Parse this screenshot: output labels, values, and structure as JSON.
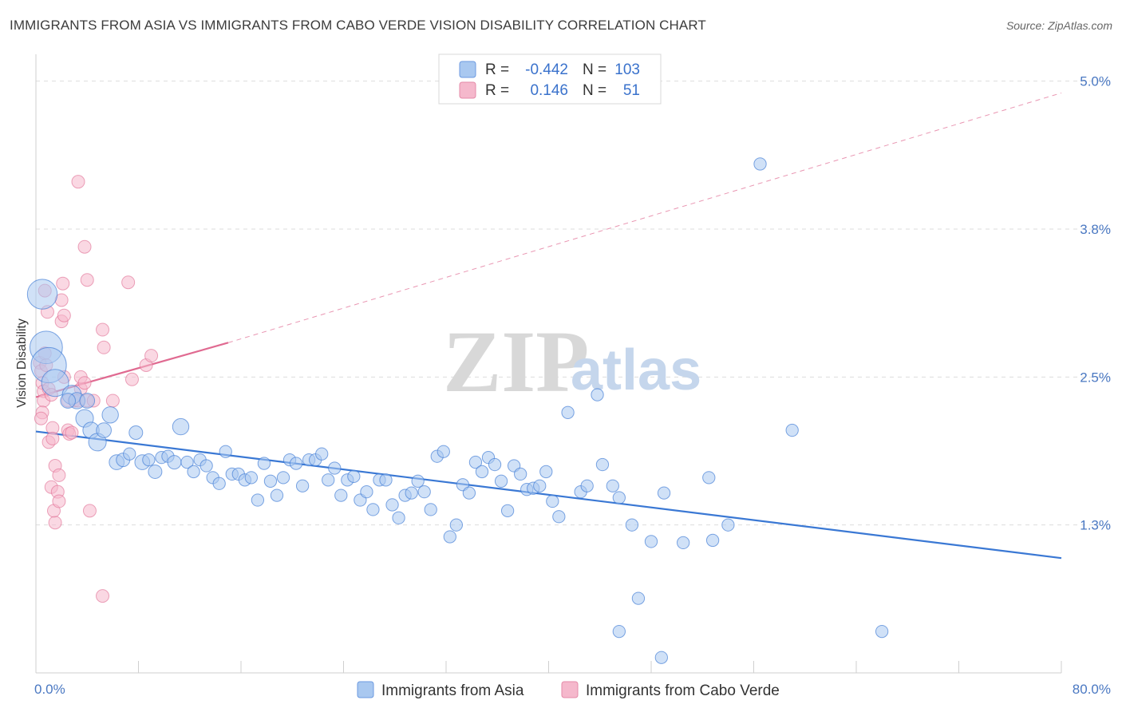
{
  "title": "IMMIGRANTS FROM ASIA VS IMMIGRANTS FROM CABO VERDE VISION DISABILITY CORRELATION CHART",
  "source_label": "Source:",
  "source_value": "ZipAtlas.com",
  "watermark": {
    "zip": "ZIP",
    "atlas": "atlas"
  },
  "colors": {
    "asia": "#3a78d4",
    "asia_fill": "#a9c8f0",
    "cabo": "#e06a91",
    "cabo_fill": "#f5b8cc",
    "grid": "#dddddd",
    "tick_text": "#4a78c2"
  },
  "legend": {
    "rows": [
      {
        "r_label": "R =",
        "r_value": "-0.442",
        "n_label": "N =",
        "n_value": "103"
      },
      {
        "r_label": "R =",
        "r_value": "0.146",
        "n_label": "N =",
        "n_value": "51"
      }
    ]
  },
  "chart_data": {
    "type": "scatter",
    "xlabel": "",
    "ylabel": "Vision Disability",
    "xlim": [
      0,
      80
    ],
    "ylim": [
      0,
      5.2
    ],
    "x_tick_labels": [
      "0.0%",
      "80.0%"
    ],
    "y_ticks": [
      1.25,
      2.5,
      3.75,
      5.0
    ],
    "y_tick_labels": [
      "1.3%",
      "2.5%",
      "3.8%",
      "5.0%"
    ],
    "grid": true,
    "legend_position": "top-center",
    "series": [
      {
        "name": "Immigrants from Asia",
        "trend": {
          "x": [
            0,
            80
          ],
          "y": [
            2.04,
            0.97
          ],
          "style": "solid"
        },
        "points": [
          [
            0.5,
            3.2,
            2.2
          ],
          [
            0.8,
            2.75,
            2.4
          ],
          [
            1.0,
            2.6,
            2.6
          ],
          [
            1.5,
            2.45,
            2.0
          ],
          [
            2.8,
            2.35,
            1.4
          ],
          [
            3.2,
            2.3,
            1.2
          ],
          [
            3.8,
            2.15,
            1.3
          ],
          [
            4.3,
            2.05,
            1.2
          ],
          [
            4.8,
            1.95,
            1.3
          ],
          [
            5.3,
            2.05,
            1.1
          ],
          [
            5.8,
            2.18,
            1.2
          ],
          [
            6.3,
            1.78,
            1.1
          ],
          [
            6.8,
            1.8,
            1.0
          ],
          [
            7.3,
            1.85,
            0.9
          ],
          [
            7.8,
            2.03,
            1.0
          ],
          [
            8.3,
            1.78,
            1.1
          ],
          [
            8.8,
            1.8,
            0.9
          ],
          [
            9.3,
            1.7,
            1.0
          ],
          [
            9.8,
            1.82,
            0.9
          ],
          [
            10.3,
            1.83,
            0.9
          ],
          [
            10.8,
            1.78,
            1.0
          ],
          [
            11.3,
            2.08,
            1.2
          ],
          [
            11.8,
            1.78,
            0.9
          ],
          [
            12.3,
            1.7,
            0.9
          ],
          [
            12.8,
            1.8,
            0.9
          ],
          [
            13.3,
            1.75,
            0.9
          ],
          [
            13.8,
            1.65,
            0.9
          ],
          [
            14.3,
            1.6,
            0.9
          ],
          [
            14.8,
            1.87,
            0.9
          ],
          [
            15.3,
            1.68,
            0.9
          ],
          [
            15.8,
            1.68,
            0.9
          ],
          [
            16.3,
            1.63,
            0.9
          ],
          [
            16.8,
            1.65,
            0.9
          ],
          [
            17.3,
            1.46,
            0.9
          ],
          [
            17.8,
            1.77,
            0.9
          ],
          [
            18.3,
            1.62,
            0.9
          ],
          [
            18.8,
            1.5,
            0.9
          ],
          [
            19.3,
            1.65,
            0.9
          ],
          [
            19.8,
            1.8,
            0.9
          ],
          [
            20.3,
            1.77,
            0.9
          ],
          [
            20.8,
            1.58,
            0.9
          ],
          [
            21.3,
            1.8,
            0.9
          ],
          [
            21.8,
            1.8,
            0.9
          ],
          [
            22.3,
            1.85,
            0.9
          ],
          [
            22.8,
            1.63,
            0.9
          ],
          [
            23.3,
            1.73,
            0.9
          ],
          [
            23.8,
            1.5,
            0.9
          ],
          [
            24.3,
            1.63,
            0.9
          ],
          [
            24.8,
            1.66,
            0.9
          ],
          [
            25.3,
            1.46,
            0.9
          ],
          [
            25.8,
            1.53,
            0.9
          ],
          [
            26.3,
            1.38,
            0.9
          ],
          [
            26.8,
            1.63,
            0.9
          ],
          [
            27.3,
            1.63,
            0.9
          ],
          [
            27.8,
            1.42,
            0.9
          ],
          [
            28.3,
            1.31,
            0.9
          ],
          [
            28.8,
            1.5,
            0.9
          ],
          [
            29.3,
            1.52,
            0.9
          ],
          [
            29.8,
            1.62,
            0.9
          ],
          [
            30.3,
            1.53,
            0.9
          ],
          [
            30.8,
            1.38,
            0.9
          ],
          [
            31.3,
            1.83,
            0.9
          ],
          [
            31.8,
            1.87,
            0.9
          ],
          [
            32.3,
            1.15,
            0.9
          ],
          [
            32.8,
            1.25,
            0.9
          ],
          [
            33.3,
            1.59,
            0.9
          ],
          [
            33.8,
            1.52,
            0.9
          ],
          [
            34.3,
            1.78,
            0.9
          ],
          [
            34.8,
            1.7,
            0.9
          ],
          [
            35.3,
            1.82,
            0.9
          ],
          [
            35.8,
            1.76,
            0.9
          ],
          [
            36.3,
            1.62,
            0.9
          ],
          [
            36.8,
            1.37,
            0.9
          ],
          [
            37.3,
            1.75,
            0.9
          ],
          [
            37.8,
            1.68,
            0.9
          ],
          [
            38.3,
            1.55,
            0.9
          ],
          [
            38.8,
            1.56,
            0.9
          ],
          [
            39.3,
            1.58,
            0.9
          ],
          [
            39.8,
            1.7,
            0.9
          ],
          [
            40.3,
            1.45,
            0.9
          ],
          [
            40.8,
            1.32,
            0.9
          ],
          [
            41.5,
            2.2,
            0.9
          ],
          [
            42.5,
            1.53,
            0.9
          ],
          [
            43.0,
            1.58,
            0.9
          ],
          [
            43.8,
            2.35,
            0.9
          ],
          [
            44.2,
            1.76,
            0.9
          ],
          [
            45.0,
            1.58,
            0.9
          ],
          [
            45.5,
            1.48,
            0.9
          ],
          [
            46.5,
            1.25,
            0.9
          ],
          [
            47.0,
            0.63,
            0.9
          ],
          [
            48.0,
            1.11,
            0.9
          ],
          [
            49.0,
            1.52,
            0.9
          ],
          [
            50.5,
            1.1,
            0.9
          ],
          [
            52.5,
            1.65,
            0.9
          ],
          [
            52.8,
            1.12,
            0.9
          ],
          [
            54.0,
            1.25,
            0.9
          ],
          [
            56.5,
            4.3,
            0.9
          ],
          [
            59.0,
            2.05,
            0.9
          ],
          [
            66.0,
            0.35,
            0.9
          ],
          [
            45.5,
            0.35,
            0.9
          ],
          [
            48.8,
            0.13,
            0.9
          ],
          [
            4.0,
            2.3,
            1.1
          ],
          [
            2.5,
            2.3,
            1.1
          ]
        ]
      },
      {
        "name": "Immigrants from Cabo Verde",
        "trend": {
          "x": [
            0,
            15
          ],
          "y": [
            2.33,
            2.79
          ],
          "style": "solid",
          "extended_to": [
            80,
            4.9
          ],
          "extended_style": "dashed"
        },
        "points": [
          [
            0.3,
            2.62
          ],
          [
            0.4,
            2.55
          ],
          [
            0.5,
            2.45
          ],
          [
            0.6,
            2.38
          ],
          [
            0.6,
            2.3
          ],
          [
            0.5,
            2.2
          ],
          [
            0.4,
            2.15
          ],
          [
            0.7,
            2.7
          ],
          [
            0.8,
            2.6
          ],
          [
            1.0,
            2.4
          ],
          [
            1.2,
            2.35
          ],
          [
            0.7,
            3.23
          ],
          [
            0.9,
            3.05
          ],
          [
            1.0,
            1.95
          ],
          [
            1.3,
            2.07
          ],
          [
            1.3,
            1.98
          ],
          [
            1.2,
            1.57
          ],
          [
            1.5,
            1.75
          ],
          [
            1.5,
            1.27
          ],
          [
            1.4,
            1.37
          ],
          [
            1.7,
            1.53
          ],
          [
            1.8,
            1.45
          ],
          [
            1.8,
            1.67
          ],
          [
            2.0,
            2.97
          ],
          [
            2.2,
            3.02
          ],
          [
            2.0,
            3.15
          ],
          [
            2.1,
            3.29
          ],
          [
            2.2,
            2.5
          ],
          [
            2.5,
            2.3
          ],
          [
            2.5,
            2.05
          ],
          [
            2.6,
            2.02
          ],
          [
            2.8,
            2.03
          ],
          [
            3.0,
            2.3
          ],
          [
            3.3,
            2.3
          ],
          [
            3.5,
            2.4
          ],
          [
            3.3,
            4.15
          ],
          [
            3.5,
            2.5
          ],
          [
            3.8,
            2.45
          ],
          [
            4.0,
            2.3
          ],
          [
            4.0,
            3.32
          ],
          [
            3.8,
            3.6
          ],
          [
            4.2,
            1.37
          ],
          [
            4.5,
            2.3
          ],
          [
            5.2,
            2.9
          ],
          [
            5.3,
            2.75
          ],
          [
            5.2,
            0.65
          ],
          [
            6.0,
            2.3
          ],
          [
            7.2,
            3.3
          ],
          [
            7.5,
            2.48
          ],
          [
            8.6,
            2.6
          ],
          [
            9.0,
            2.68
          ]
        ]
      }
    ],
    "bottom_legend": [
      "Immigrants from Asia",
      "Immigrants from Cabo Verde"
    ]
  }
}
